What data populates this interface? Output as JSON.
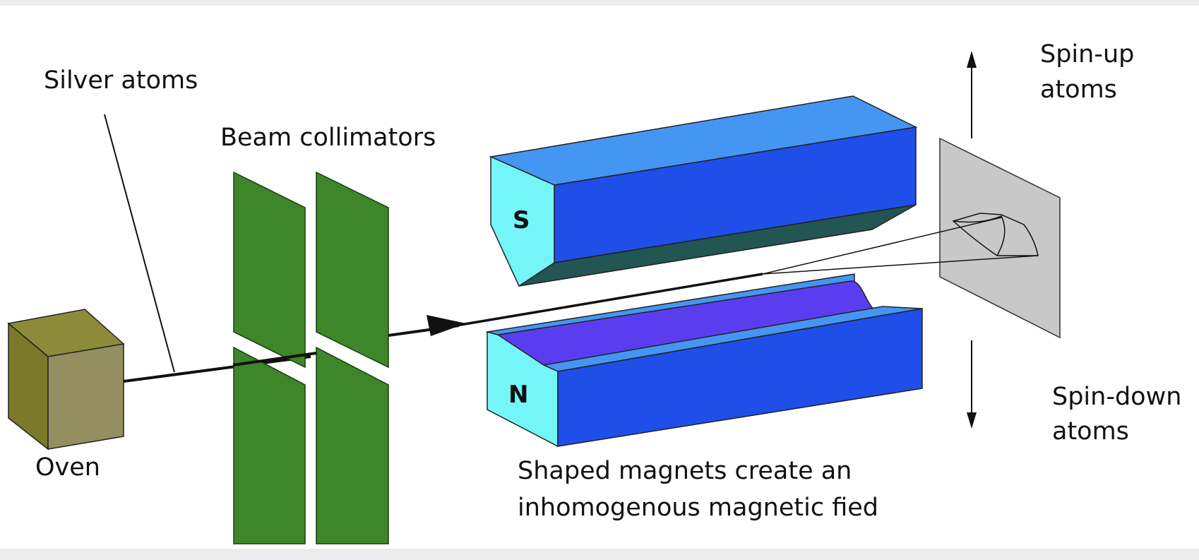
{
  "labels": {
    "silver_atoms": "Silver atoms",
    "beam_collimators": "Beam collimators",
    "oven": "Oven",
    "spin_up_line1": "Spin-up",
    "spin_up_line2": "atoms",
    "spin_down_line1": "Spin-down",
    "spin_down_line2": "atoms",
    "magnets_line1": "Shaped magnets create an",
    "magnets_line2": "inhomogenous magnetic fied",
    "south_pole": "S",
    "north_pole": "N"
  },
  "colors": {
    "background": "#ffffff",
    "frame": "#ececec",
    "oven_front": "#938f5e",
    "oven_top": "#8d8b3a",
    "oven_side": "#7c7a2a",
    "collimator": "#3d8629",
    "magnet_end": "#74f5f7",
    "magnet_top": "#4596f2",
    "magnet_front": "#1f4ee8",
    "magnet_shadow": "#235552",
    "groove": "#5b3df0",
    "screen": "#c8c8c8"
  }
}
